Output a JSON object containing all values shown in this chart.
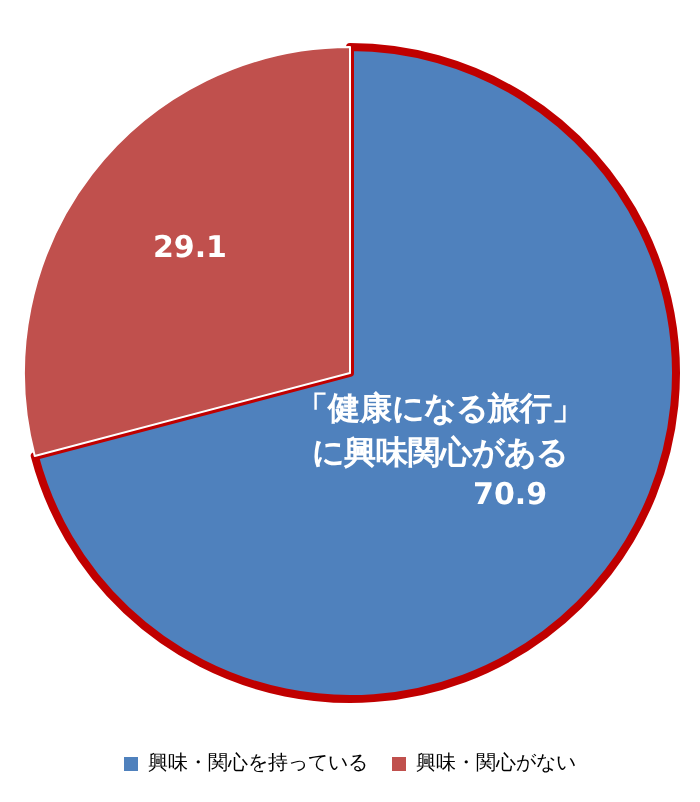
{
  "chart_data": {
    "type": "pie",
    "categories": [
      "興味・関心を持っている",
      "興味・関心がない"
    ],
    "values": [
      70.9,
      29.1
    ],
    "colors": [
      "#4f81bd",
      "#c0504d"
    ],
    "data_labels": true,
    "legend": "bottom",
    "annotations": [
      "「健康になる旅行」に興味関心がある"
    ]
  }
}
